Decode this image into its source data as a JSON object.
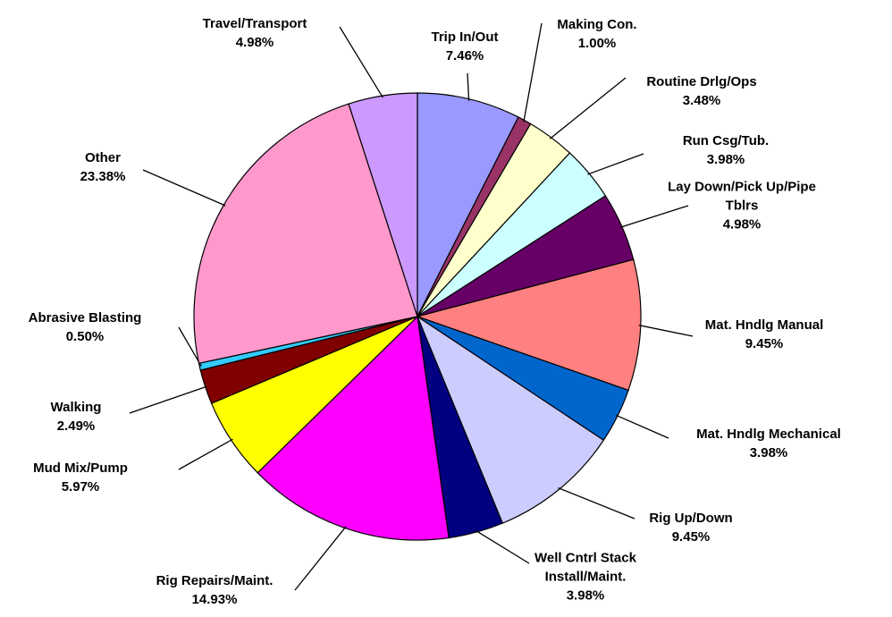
{
  "chart_data": {
    "type": "pie",
    "categories": [
      "Trip In/Out",
      "Making Con.",
      "Routine Drlg/Ops",
      "Run Csg/Tub.",
      "Lay Down/Pick Up/Pipe Tblrs",
      "Mat. Hndlg Manual",
      "Mat. Hndlg Mechanical",
      "Rig Up/Down",
      "Well Cntrl Stack Install/Maint.",
      "Rig Repairs/Maint.",
      "Mud Mix/Pump",
      "Walking",
      "Abrasive Blasting",
      "Other",
      "Travel/Transport"
    ],
    "values": [
      7.46,
      1.0,
      3.48,
      3.98,
      4.98,
      9.45,
      3.98,
      9.45,
      3.98,
      14.93,
      5.97,
      2.49,
      0.5,
      23.38,
      4.98
    ],
    "value_labels": [
      "7.46%",
      "1.00%",
      "3.48%",
      "3.98%",
      "4.98%",
      "9.45%",
      "3.98%",
      "9.45%",
      "3.98%",
      "14.93%",
      "5.97%",
      "2.49%",
      "0.50%",
      "23.38%",
      "4.98%"
    ],
    "colors": [
      "#9999ff",
      "#993366",
      "#ffffcc",
      "#ccffff",
      "#660066",
      "#ff8080",
      "#0066cc",
      "#ccccff",
      "#000080",
      "#ff00ff",
      "#ffff00",
      "#800000",
      "#33ccff",
      "#ff99cc",
      "#cc99ff"
    ]
  }
}
